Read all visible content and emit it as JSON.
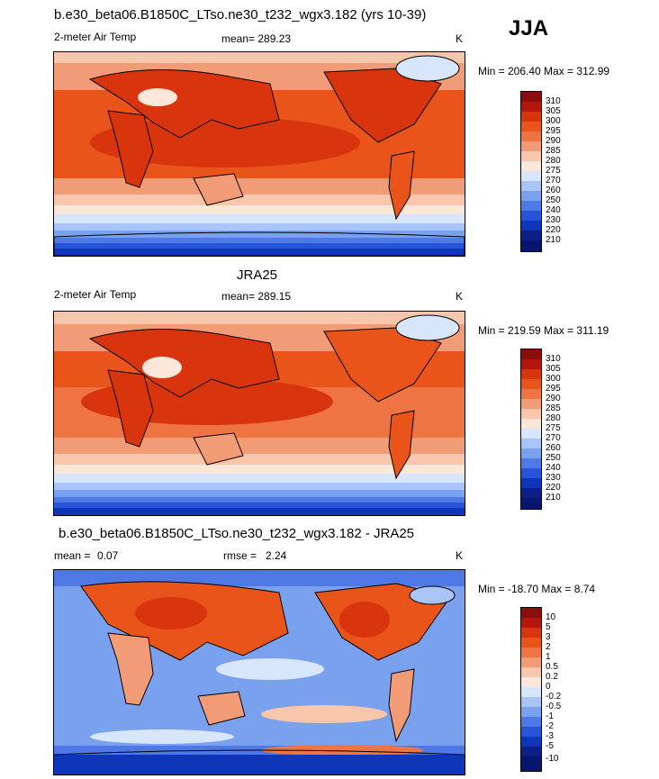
{
  "season_label": "JJA",
  "units": "K",
  "panels": [
    {
      "title": "b.e30_beta06.B1850C_LTso.ne30_t232_wgx3.182 (yrs 10-39)",
      "variable": "2-meter Air Temp",
      "mean": "mean= 289.23",
      "units": "K",
      "minmax": "Min = 206.40 Max = 312.99",
      "colorbar_labels": [
        "310",
        "305",
        "300",
        "295",
        "290",
        "285",
        "280",
        "275",
        "270",
        "260",
        "250",
        "240",
        "230",
        "220",
        "210"
      ]
    },
    {
      "title": "JRA25",
      "variable": "2-meter Air Temp",
      "mean": "mean= 289.15",
      "units": "K",
      "minmax": "Min = 219.59 Max = 311.19",
      "colorbar_labels": [
        "310",
        "305",
        "300",
        "295",
        "290",
        "285",
        "280",
        "275",
        "270",
        "260",
        "250",
        "240",
        "230",
        "220",
        "210"
      ]
    },
    {
      "title": "b.e30_beta06.B1850C_LTso.ne30_t232_wgx3.182 - JRA25",
      "mean_label": "mean =",
      "mean_value": "0.07",
      "rmse_label": "rmse =",
      "rmse_value": "2.24",
      "units": "K",
      "minmax": "Min = -18.70 Max =   8.74",
      "colorbar_labels": [
        "10",
        "5",
        "3",
        "2",
        "1",
        "0.5",
        "0.2",
        "0",
        "-0.2",
        "-0.5",
        "-1",
        "-2",
        "-3",
        "-5",
        "-10"
      ]
    }
  ],
  "colors": {
    "scale": [
      "#8b0d0d",
      "#b3160d",
      "#d8350e",
      "#e8541a",
      "#ee7543",
      "#f29c77",
      "#f7c6ab",
      "#fbe6da",
      "#d8e6fb",
      "#a9c4f6",
      "#7aa1ee",
      "#4e79e4",
      "#2754d8",
      "#0f36b8",
      "#0b1f86",
      "#081670"
    ]
  }
}
